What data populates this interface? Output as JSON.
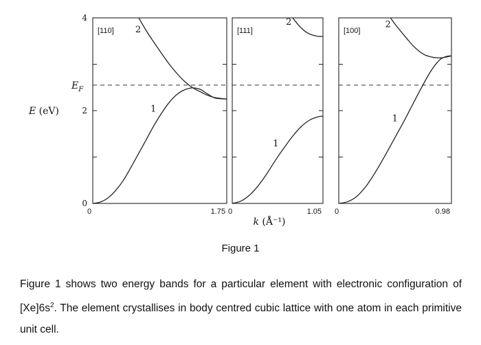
{
  "chart_data": {
    "type": "line",
    "ylabel": "E (eV)",
    "xlabel": "k (Å⁻¹)",
    "ylim": [
      0,
      4
    ],
    "y_ticks": [
      0,
      2,
      4
    ],
    "y_tick_labels": [
      "0",
      "2",
      "4"
    ],
    "fermi_label": "E_F",
    "fermi_energy": 2.55,
    "panels": [
      {
        "direction": "[110]",
        "xlim": [
          0,
          1.75
        ],
        "x_tick_labels": [
          "0",
          "1.75"
        ],
        "series": [
          {
            "name": "1",
            "x": [
              0,
              0.1,
              0.2,
              0.3,
              0.4,
              0.5,
              0.6,
              0.7,
              0.8,
              0.9,
              1.0,
              1.1,
              1.2,
              1.3,
              1.4,
              1.5,
              1.6,
              1.75
            ],
            "y": [
              0,
              0.03,
              0.12,
              0.28,
              0.5,
              0.78,
              1.08,
              1.38,
              1.68,
              1.95,
              2.18,
              2.35,
              2.45,
              2.49,
              2.46,
              2.36,
              2.27,
              2.25
            ]
          },
          {
            "name": "2",
            "x": [
              0.6,
              0.7,
              0.8,
              0.9,
              1.0,
              1.1,
              1.2,
              1.3,
              1.4,
              1.5,
              1.6,
              1.75
            ],
            "y": [
              4.0,
              3.72,
              3.47,
              3.23,
              3.0,
              2.8,
              2.63,
              2.5,
              2.41,
              2.33,
              2.28,
              2.25
            ]
          }
        ]
      },
      {
        "direction": "[111]",
        "xlim": [
          0,
          1.05
        ],
        "x_tick_labels": [
          "0",
          "1.05"
        ],
        "series": [
          {
            "name": "1",
            "x": [
              0,
              0.1,
              0.2,
              0.3,
              0.4,
              0.5,
              0.6,
              0.7,
              0.8,
              0.9,
              1.0,
              1.05
            ],
            "y": [
              0,
              0.05,
              0.18,
              0.38,
              0.64,
              0.93,
              1.2,
              1.45,
              1.66,
              1.8,
              1.87,
              1.88
            ]
          },
          {
            "name": "2",
            "x": [
              0.7,
              0.75,
              0.8,
              0.85,
              0.9,
              0.95,
              1.0,
              1.05
            ],
            "y": [
              4.0,
              3.88,
              3.78,
              3.7,
              3.65,
              3.62,
              3.6,
              3.6
            ]
          }
        ]
      },
      {
        "direction": "[100]",
        "xlim": [
          0,
          0.98
        ],
        "x_tick_labels": [
          "0",
          "0.98"
        ],
        "series": [
          {
            "name": "1",
            "x": [
              0,
              0.08,
              0.16,
              0.24,
              0.32,
              0.4,
              0.48,
              0.56,
              0.64,
              0.72,
              0.8,
              0.88,
              0.94,
              0.98
            ],
            "y": [
              0,
              0.04,
              0.16,
              0.38,
              0.68,
              1.02,
              1.38,
              1.74,
              2.12,
              2.5,
              2.85,
              3.1,
              3.17,
              3.18
            ]
          },
          {
            "name": "2",
            "x": [
              0.45,
              0.5,
              0.55,
              0.6,
              0.65,
              0.7,
              0.75,
              0.8,
              0.85,
              0.9,
              0.98
            ],
            "y": [
              4.0,
              3.83,
              3.68,
              3.53,
              3.39,
              3.28,
              3.2,
              3.16,
              3.14,
              3.14,
              3.18
            ]
          }
        ]
      }
    ]
  },
  "caption": "Figure 1",
  "paragraph": {
    "before_sup": "Figure 1 shows two energy bands for a particular element with electronic configuration of [Xe]6s",
    "sup": "2",
    "after_sup": ". The element crystallises in body centred cubic lattice with one atom in each primitive unit cell."
  }
}
